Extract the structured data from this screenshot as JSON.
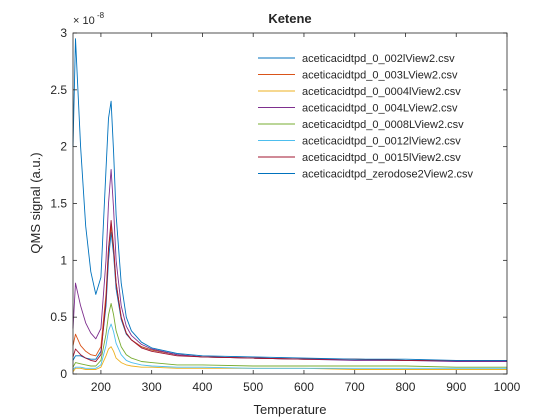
{
  "chart_data": {
    "type": "line",
    "title": "Ketene",
    "xlabel": "Temperature",
    "ylabel": "QMS signal (a.u.)",
    "y_exponent_label": "× 10",
    "y_exponent_power": "-8",
    "xlim": [
      145,
      1000
    ],
    "ylim": [
      0,
      3
    ],
    "x_ticks": [
      200,
      300,
      400,
      500,
      600,
      700,
      800,
      900,
      1000
    ],
    "x_tick_labels": [
      "200",
      "300",
      "400",
      "500",
      "600",
      "700",
      "800",
      "900",
      "1000"
    ],
    "y_ticks": [
      0,
      0.5,
      1,
      1.5,
      2,
      2.5,
      3
    ],
    "y_tick_labels": [
      "0",
      "0.5",
      "1",
      "1.5",
      "2",
      "2.5",
      "3"
    ],
    "grid": false,
    "legend_position": "top-right",
    "x": [
      145,
      150,
      160,
      170,
      180,
      190,
      200,
      210,
      215,
      220,
      225,
      230,
      240,
      250,
      260,
      280,
      300,
      350,
      400,
      500,
      600,
      700,
      800,
      900,
      1000
    ],
    "series": [
      {
        "name": "aceticacidtpd_0_002lView2.csv",
        "color": "#0072BD",
        "values": [
          0.12,
          0.16,
          0.16,
          0.14,
          0.13,
          0.13,
          0.2,
          0.6,
          1.0,
          1.25,
          1.05,
          0.75,
          0.48,
          0.35,
          0.3,
          0.24,
          0.21,
          0.17,
          0.15,
          0.14,
          0.13,
          0.13,
          0.12,
          0.12,
          0.12
        ]
      },
      {
        "name": "aceticacidtpd_0_003LView2.csv",
        "color": "#D95319",
        "values": [
          0.25,
          0.35,
          0.25,
          0.2,
          0.17,
          0.16,
          0.24,
          0.7,
          1.1,
          1.3,
          1.1,
          0.8,
          0.5,
          0.36,
          0.3,
          0.24,
          0.21,
          0.17,
          0.15,
          0.14,
          0.13,
          0.13,
          0.12,
          0.12,
          0.12
        ]
      },
      {
        "name": "aceticacidtpd_0_0004lView2.csv",
        "color": "#EDB120",
        "values": [
          0.02,
          0.05,
          0.05,
          0.04,
          0.04,
          0.04,
          0.06,
          0.16,
          0.22,
          0.24,
          0.2,
          0.14,
          0.1,
          0.08,
          0.07,
          0.06,
          0.06,
          0.05,
          0.05,
          0.05,
          0.05,
          0.04,
          0.04,
          0.04,
          0.04
        ]
      },
      {
        "name": "aceticacidtpd_0_004LView2.csv",
        "color": "#7E2F8E",
        "values": [
          0.4,
          0.8,
          0.6,
          0.45,
          0.36,
          0.31,
          0.4,
          1.0,
          1.5,
          1.8,
          1.45,
          1.0,
          0.6,
          0.42,
          0.34,
          0.26,
          0.22,
          0.17,
          0.15,
          0.14,
          0.13,
          0.12,
          0.12,
          0.11,
          0.11
        ]
      },
      {
        "name": "aceticacidtpd_0_0008LView2.csv",
        "color": "#77AC30",
        "values": [
          0.06,
          0.1,
          0.09,
          0.08,
          0.07,
          0.07,
          0.12,
          0.35,
          0.52,
          0.62,
          0.52,
          0.38,
          0.24,
          0.17,
          0.14,
          0.11,
          0.1,
          0.08,
          0.08,
          0.07,
          0.07,
          0.07,
          0.07,
          0.06,
          0.06
        ]
      },
      {
        "name": "aceticacidtpd_0_0012lView2.csv",
        "color": "#4DBEEE",
        "values": [
          0.04,
          0.06,
          0.06,
          0.05,
          0.05,
          0.05,
          0.08,
          0.25,
          0.38,
          0.44,
          0.37,
          0.27,
          0.17,
          0.12,
          0.1,
          0.08,
          0.07,
          0.06,
          0.06,
          0.05,
          0.05,
          0.05,
          0.05,
          0.05,
          0.05
        ]
      },
      {
        "name": "aceticacidtpd_0_0015lView2.csv",
        "color": "#A2142F",
        "values": [
          0.15,
          0.22,
          0.17,
          0.14,
          0.12,
          0.11,
          0.17,
          0.65,
          1.1,
          1.35,
          1.12,
          0.8,
          0.5,
          0.36,
          0.3,
          0.23,
          0.2,
          0.16,
          0.15,
          0.14,
          0.13,
          0.13,
          0.12,
          0.12,
          0.12
        ]
      },
      {
        "name": "aceticacidtpd_zerodose2View2.csv",
        "color": "#0072BD",
        "values": [
          2.0,
          2.95,
          2.0,
          1.3,
          0.9,
          0.7,
          0.85,
          1.8,
          2.25,
          2.4,
          1.95,
          1.4,
          0.8,
          0.5,
          0.38,
          0.28,
          0.23,
          0.18,
          0.16,
          0.15,
          0.14,
          0.13,
          0.13,
          0.12,
          0.12
        ]
      }
    ]
  }
}
